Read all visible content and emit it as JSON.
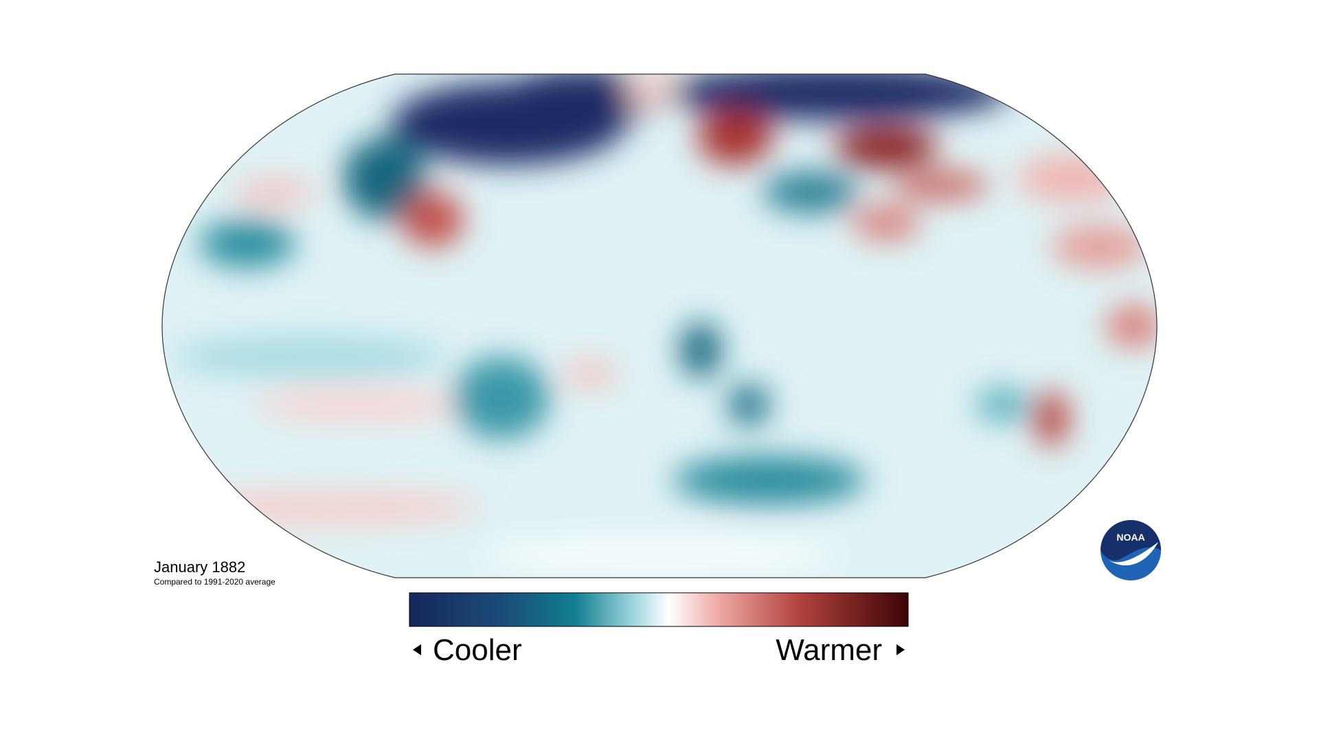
{
  "map": {
    "title": "January 1882",
    "subtitle": "Compared to 1991-2020 average"
  },
  "legend": {
    "low_label": "Cooler",
    "high_label": "Warmer"
  },
  "logo": {
    "text": "NOAA"
  }
}
